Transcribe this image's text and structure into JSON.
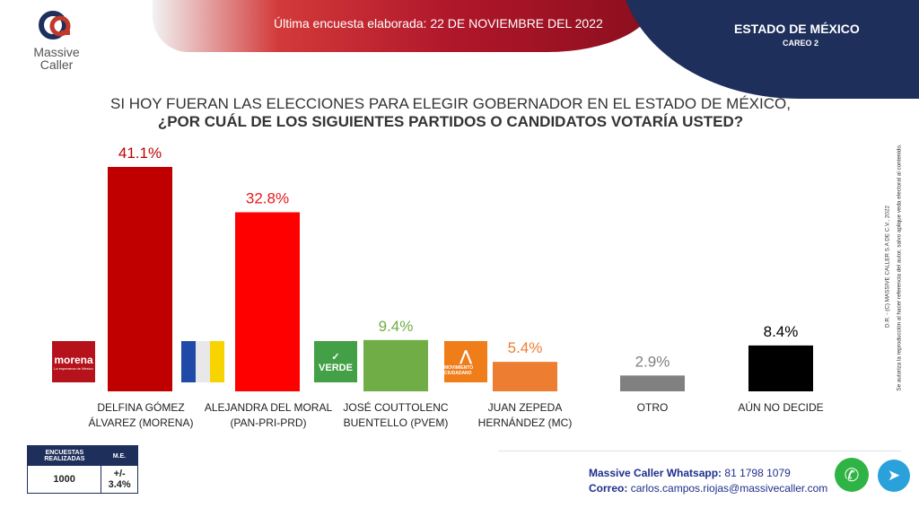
{
  "header": {
    "brand_name": "Massive",
    "brand_sub": "Caller",
    "survey_date_text": "Última encuesta elaborada: 22 DE NOVIEMBRE DEL 2022",
    "state": "ESTADO DE MÉXICO",
    "scenario": "CAREO 2"
  },
  "question": {
    "line1": "SI HOY FUERAN LAS ELECCIONES PARA ELEGIR GOBERNADOR EN EL ESTADO DE MÉXICO,",
    "line2": "¿POR CUÁL DE LOS SIGUIENTES PARTIDOS O CANDIDATOS  VOTARÍA USTED?"
  },
  "chart_data": {
    "type": "bar",
    "title": "¿POR CUÁL DE LOS SIGUIENTES PARTIDOS O CANDIDATOS VOTARÍA USTED?",
    "categories": [
      "DELFINA GÓMEZ ÁLVAREZ (MORENA)",
      "ALEJANDRA DEL MORAL (PAN-PRI-PRD)",
      "JOSÉ COUTTOLENC BUENTELLO (PVEM)",
      "JUAN ZEPEDA HERNÁNDEZ (MC)",
      "OTRO",
      "AÚN NO DECIDE"
    ],
    "values": [
      41.1,
      32.8,
      9.4,
      5.4,
      2.9,
      8.4
    ],
    "value_labels": [
      "41.1%",
      "32.8%",
      "9.4%",
      "5.4%",
      "2.9%",
      "8.4%"
    ],
    "colors": [
      "#c00000",
      "#ff0000",
      "#70ad47",
      "#ed7d31",
      "#808080",
      "#000000"
    ],
    "label_colors": [
      "#c00000",
      "#e8191b",
      "#70ad47",
      "#ed7d31",
      "#808080",
      "#000000"
    ],
    "unit": "%",
    "ylim": [
      0,
      45
    ],
    "xlabel": "",
    "ylabel": ""
  },
  "candidates": [
    {
      "line1": "DELFINA GÓMEZ",
      "line2": "ÁLVAREZ (MORENA)"
    },
    {
      "line1": "ALEJANDRA DEL MORAL",
      "line2": "(PAN-PRI-PRD)"
    },
    {
      "line1": "JOSÉ COUTTOLENC",
      "line2": "BUENTELLO (PVEM)"
    },
    {
      "line1": "JUAN ZEPEDA",
      "line2": "HERNÁNDEZ (MC)"
    },
    {
      "line1": "OTRO",
      "line2": ""
    },
    {
      "line1": "AÚN NO DECIDE",
      "line2": ""
    }
  ],
  "party_logos": {
    "morena": "morena",
    "morena_tagline": "La esperanza de México",
    "verde": "VERDE",
    "mc": "MOVIMIENTO CIUDADANO"
  },
  "survey": {
    "col1_header": "ENCUESTAS REALIZADAS",
    "col2_header": "M.E.",
    "count": "1000",
    "margin": "+/- 3.4%"
  },
  "contact": {
    "whatsapp_label": "Massive Caller Whatsapp:",
    "whatsapp": "81 1798 1079",
    "email_label": "Correo:",
    "email": "carlos.campos.riojas@massivecaller.com"
  },
  "legal": {
    "line1": "Se autoriza la reproducción al hacer referencia del autor, salvo aplique veda electoral al contenido.",
    "line2": "D.R. - (C) MASSIVE CALLER S.A DE C.V., 2022"
  },
  "colors": {
    "navy": "#1f2f5c",
    "header_red": "#b0162a",
    "contact_blue": "#1f2f8c",
    "whatsapp_green": "#2fb344",
    "telegram_blue": "#2aa1da"
  }
}
